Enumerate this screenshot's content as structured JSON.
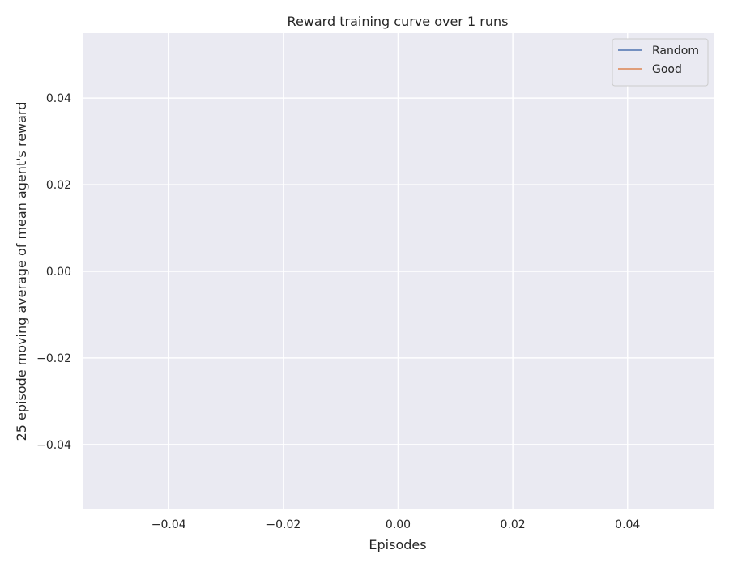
{
  "chart_data": {
    "type": "line",
    "title": "Reward training curve over 1 runs",
    "xlabel": "Episodes",
    "ylabel": "25 episode moving average of mean agent's reward",
    "xlim": [
      -0.055,
      0.055
    ],
    "ylim": [
      -0.055,
      0.055
    ],
    "xticks": [
      -0.04,
      -0.02,
      0.0,
      0.02,
      0.04
    ],
    "xtick_labels": [
      "−0.04",
      "−0.02",
      "0.00",
      "0.02",
      "0.04"
    ],
    "yticks": [
      0.04,
      0.02,
      0.0,
      -0.02,
      -0.04
    ],
    "ytick_labels": [
      "0.04",
      "0.02",
      "0.00",
      "−0.02",
      "−0.04"
    ],
    "grid": true,
    "legend_position": "top-right",
    "series": [
      {
        "name": "Random",
        "color": "#4c72b0",
        "x": [],
        "y": []
      },
      {
        "name": "Good",
        "color": "#dd8452",
        "x": [],
        "y": []
      }
    ],
    "plot_background": "#eaeaf2",
    "grid_color": "#ffffff"
  }
}
